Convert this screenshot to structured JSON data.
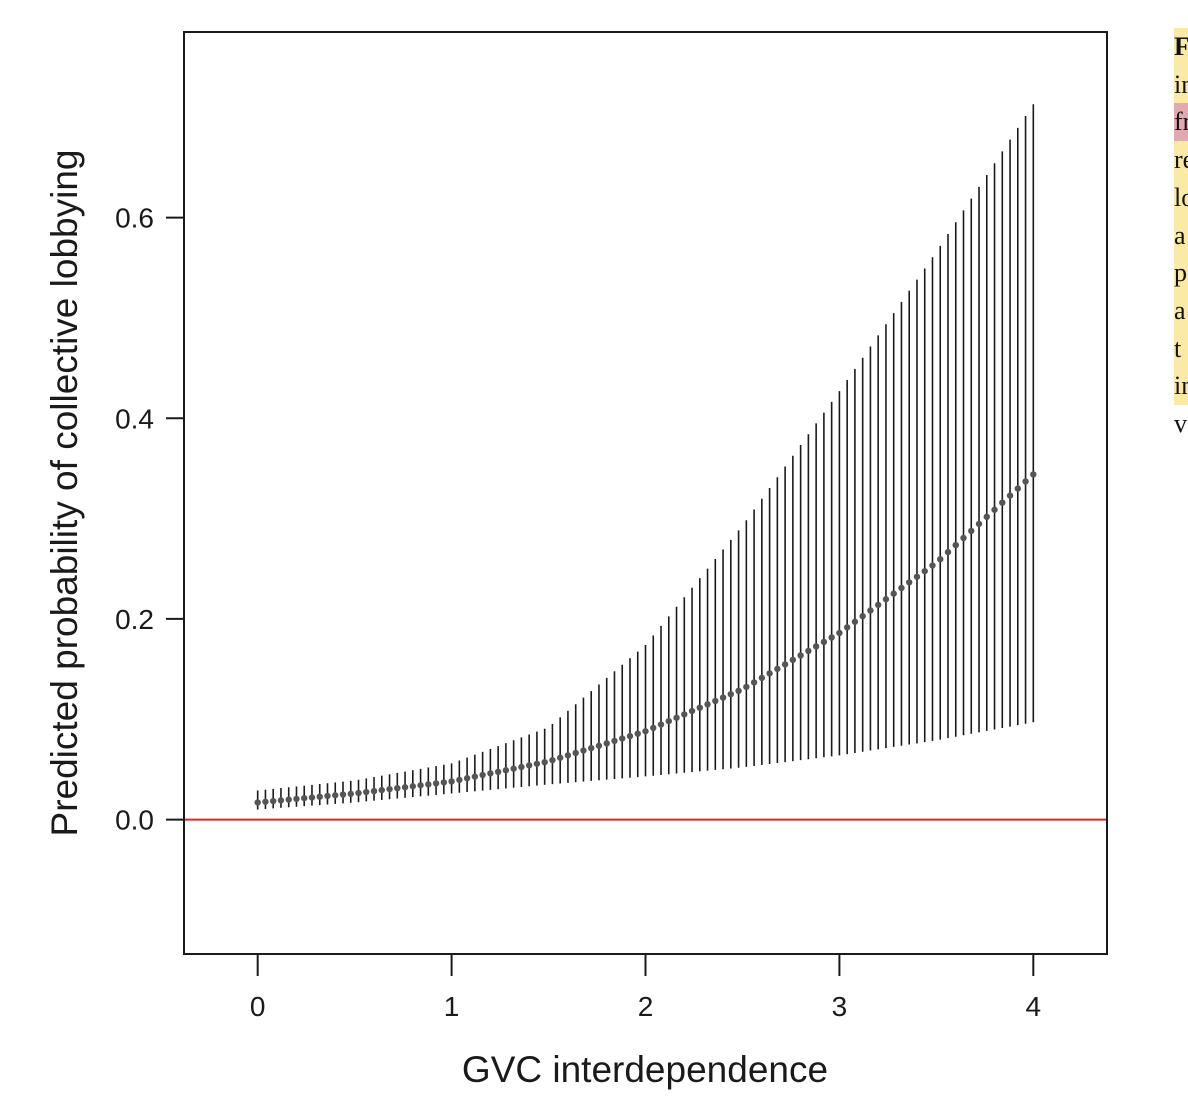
{
  "chart_data": {
    "type": "line",
    "title": "",
    "xlabel": "GVC interdependence",
    "ylabel": "Predicted probability of collective lobbying",
    "xlim": [
      -0.38,
      4.38
    ],
    "ylim": [
      -0.134,
      0.785
    ],
    "x_ticks": [
      "0",
      "1",
      "2",
      "3",
      "4"
    ],
    "y_ticks": [
      "0.0",
      "0.2",
      "0.4",
      "0.6"
    ],
    "reference_line": {
      "y": 0.0,
      "color": "#e8211c"
    },
    "series": [
      {
        "x": [
          0,
          0.5,
          1,
          1.5,
          2,
          2.5,
          3,
          3.5,
          4
        ],
        "estimate": [
          0.017,
          0.026,
          0.038,
          0.058,
          0.088,
          0.13,
          0.186,
          0.256,
          0.344
        ],
        "lower": [
          0.01,
          0.017,
          0.026,
          0.035,
          0.043,
          0.052,
          0.064,
          0.079,
          0.097
        ],
        "upper": [
          0.029,
          0.039,
          0.056,
          0.092,
          0.174,
          0.293,
          0.427,
          0.566,
          0.713
        ]
      }
    ],
    "grid": false,
    "legend": "none",
    "colors": {
      "estimate": "#555555",
      "interval": "#1a1a1a",
      "reference": "#e8211c"
    }
  },
  "caption_fragments": [
    "F",
    "in",
    "fr",
    "re",
    "lo",
    "a",
    "p",
    "a",
    "t",
    "in",
    "v"
  ]
}
